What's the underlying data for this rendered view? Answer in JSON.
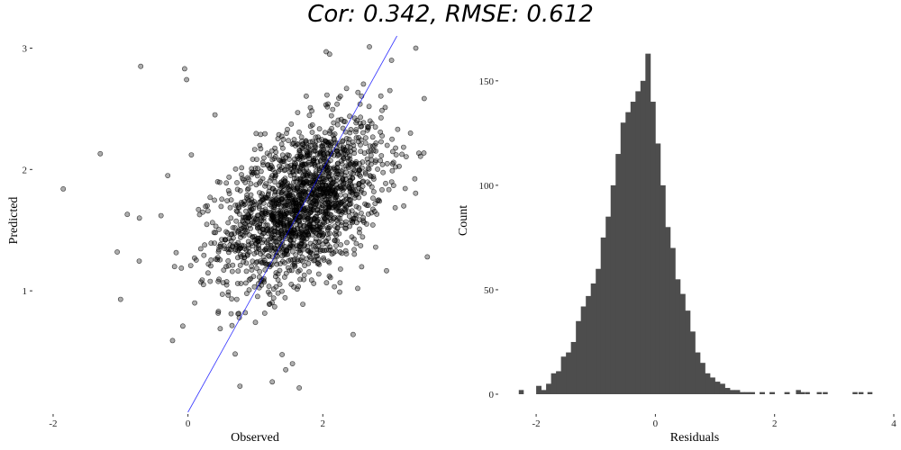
{
  "title": "Cor: 0.342, RMSE: 0.612",
  "colors": {
    "points": "#000000",
    "identity_line": "#0000ff",
    "bars": "#4d4d4d"
  },
  "chart_data": [
    {
      "type": "scatter",
      "xlabel": "Observed",
      "ylabel": "Predicted",
      "xlim": [
        -2.2,
        3.6
      ],
      "ylim": [
        0.0,
        3.1
      ],
      "xticks": [
        -2,
        0,
        2
      ],
      "xtick_labels": [
        "-2",
        "0",
        "2"
      ],
      "yticks": [
        1,
        2,
        3
      ],
      "ytick_labels": [
        "1",
        "2",
        "3"
      ],
      "grid": false,
      "reference_line": {
        "slope": 1,
        "intercept": 0
      },
      "n_points": 1800,
      "distribution": {
        "x_mean": 1.7,
        "x_sd": 0.6,
        "y_mean": 1.72,
        "y_sd": 0.34
      },
      "points": [
        [
          -1.85,
          1.84
        ],
        [
          -1.3,
          2.13
        ],
        [
          -1.05,
          1.32
        ],
        [
          -1.0,
          0.93
        ],
        [
          -0.7,
          2.85
        ],
        [
          -0.9,
          1.63
        ],
        [
          -0.72,
          1.6
        ],
        [
          -0.05,
          2.83
        ],
        [
          -0.02,
          2.74
        ],
        [
          0.05,
          2.12
        ],
        [
          0.4,
          2.45
        ],
        [
          0.6,
          0.99
        ],
        [
          0.85,
          0.82
        ],
        [
          0.7,
          0.48
        ],
        [
          1.25,
          0.25
        ],
        [
          1.65,
          0.2
        ],
        [
          2.45,
          0.64
        ],
        [
          3.55,
          1.28
        ],
        [
          3.38,
          3.0
        ],
        [
          3.02,
          2.9
        ],
        [
          2.05,
          2.97
        ],
        [
          2.1,
          2.95
        ],
        [
          1.55,
          0.4
        ],
        [
          1.45,
          0.35
        ],
        [
          -0.4,
          1.62
        ],
        [
          -0.2,
          1.2
        ],
        [
          0.1,
          0.9
        ],
        [
          3.3,
          2.3
        ],
        [
          3.2,
          1.7
        ],
        [
          -0.3,
          1.95
        ]
      ],
      "points_note": "points listed are the outliers; the dense central cloud follows the distribution above"
    },
    {
      "type": "bar",
      "xlabel": "Residuals",
      "ylabel": "Count",
      "xlim": [
        -2.5,
        4.0
      ],
      "ylim": [
        0,
        165
      ],
      "xticks": [
        -2,
        0,
        2,
        4
      ],
      "xtick_labels": [
        "-2",
        "0",
        "2",
        "4"
      ],
      "yticks": [
        0,
        50,
        100,
        150
      ],
      "ytick_labels": [
        "0",
        "50",
        "100",
        "150"
      ],
      "grid": false,
      "bin_width": 0.0833,
      "bin_start": -2.0,
      "counts": [
        4,
        2,
        5,
        10,
        11,
        18,
        20,
        25,
        35,
        42,
        47,
        53,
        60,
        75,
        85,
        100,
        115,
        130,
        135,
        140,
        145,
        150,
        163,
        140,
        120,
        100,
        80,
        70,
        55,
        48,
        40,
        30,
        20,
        15,
        10,
        8,
        6,
        5,
        3,
        2,
        2,
        1,
        1,
        1,
        0,
        1,
        0,
        1,
        0,
        0,
        1,
        0,
        0,
        1
      ],
      "extra_bars": [
        {
          "x": -2.25,
          "count": 2
        },
        {
          "x": 2.4,
          "count": 2
        },
        {
          "x": 2.55,
          "count": 1
        },
        {
          "x": 2.75,
          "count": 1
        },
        {
          "x": 2.85,
          "count": 1
        },
        {
          "x": 3.35,
          "count": 1
        },
        {
          "x": 3.45,
          "count": 1
        },
        {
          "x": 3.6,
          "count": 1
        }
      ]
    }
  ]
}
